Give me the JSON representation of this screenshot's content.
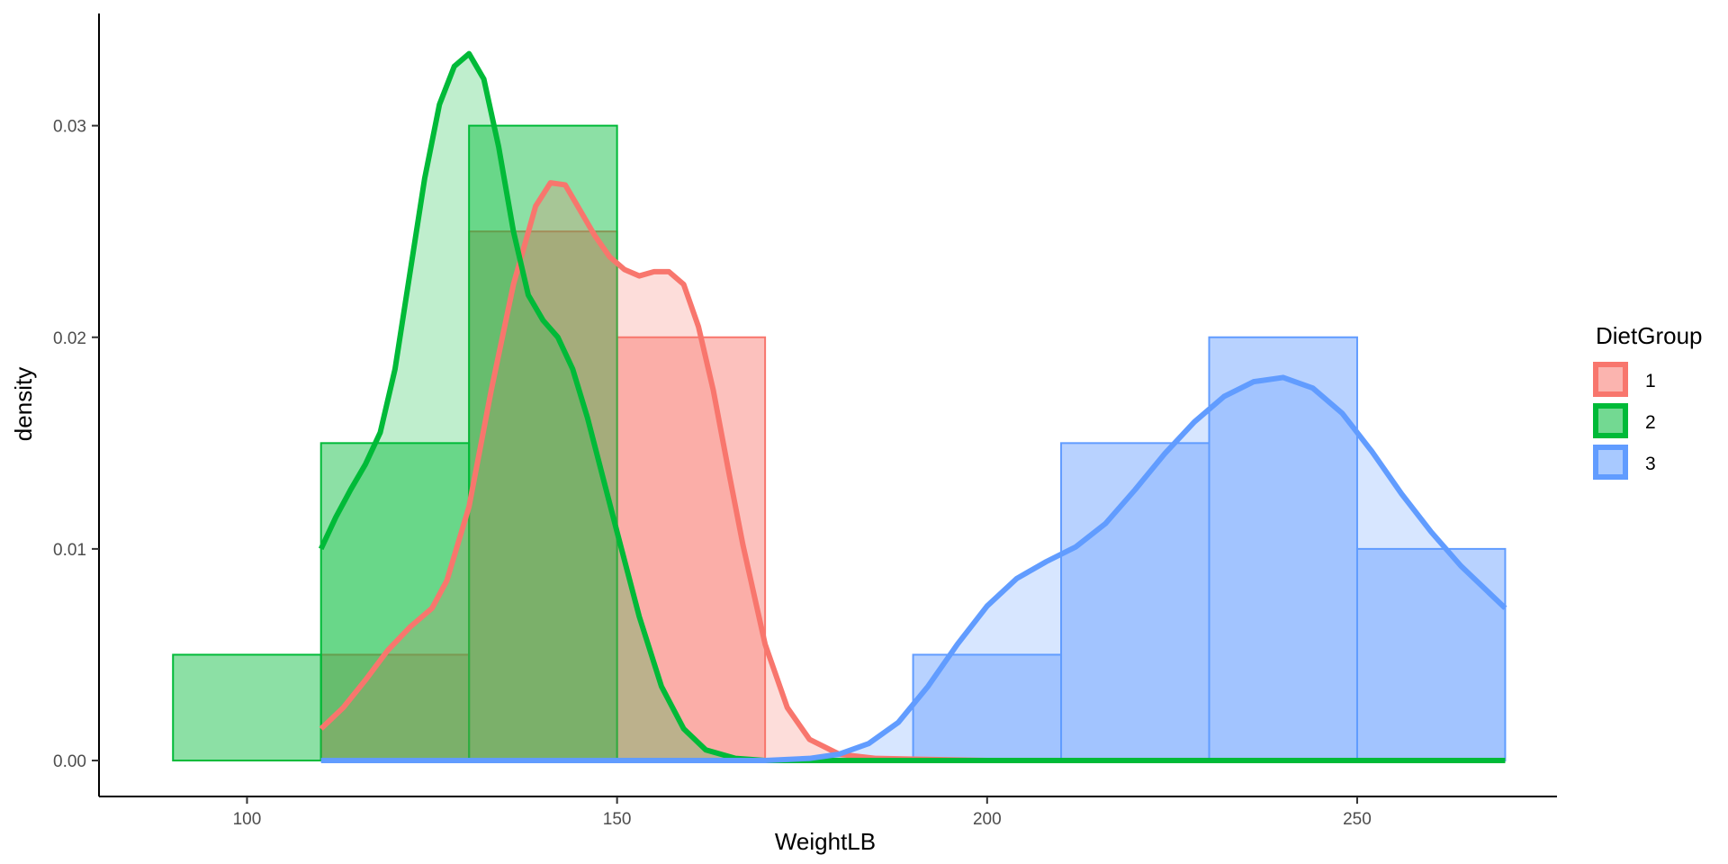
{
  "chart_data": {
    "type": "histogram+density",
    "title": "",
    "xlabel": "WeightLB",
    "ylabel": "density",
    "xlim": [
      80,
      277
    ],
    "ylim": [
      -0.0017,
      0.0353
    ],
    "xticks": [
      100,
      150,
      200,
      250
    ],
    "yticks": [
      0.0,
      0.01,
      0.02,
      0.03
    ],
    "xtick_labels": [
      "100",
      "150",
      "200",
      "250"
    ],
    "ytick_labels": [
      "0.00",
      "0.01",
      "0.02",
      "0.03"
    ],
    "grid": false,
    "legend": {
      "title": "DietGroup",
      "position": "right",
      "entries": [
        "1",
        "2",
        "3"
      ]
    },
    "series": [
      {
        "name": "1",
        "color": "#F8766D",
        "bins": [
          {
            "x0": 110,
            "x1": 130,
            "density": 0.005
          },
          {
            "x0": 130,
            "x1": 150,
            "density": 0.025
          },
          {
            "x0": 150,
            "x1": 170,
            "density": 0.02
          }
        ],
        "density_curve": [
          [
            110,
            0.0015
          ],
          [
            113,
            0.0025
          ],
          [
            116,
            0.0038
          ],
          [
            119,
            0.0052
          ],
          [
            122,
            0.0063
          ],
          [
            125,
            0.0072
          ],
          [
            127,
            0.0085
          ],
          [
            130,
            0.012
          ],
          [
            133,
            0.0175
          ],
          [
            136,
            0.0225
          ],
          [
            139,
            0.0262
          ],
          [
            141,
            0.0273
          ],
          [
            143,
            0.0272
          ],
          [
            145,
            0.026
          ],
          [
            147,
            0.0248
          ],
          [
            149,
            0.0238
          ],
          [
            151,
            0.0232
          ],
          [
            153,
            0.0229
          ],
          [
            155,
            0.0231
          ],
          [
            157,
            0.0231
          ],
          [
            159,
            0.0225
          ],
          [
            161,
            0.0205
          ],
          [
            163,
            0.0175
          ],
          [
            165,
            0.0138
          ],
          [
            167,
            0.0102
          ],
          [
            170,
            0.0055
          ],
          [
            173,
            0.0025
          ],
          [
            176,
            0.001
          ],
          [
            180,
            0.0003
          ],
          [
            185,
            0.0001
          ],
          [
            200,
            0.0
          ],
          [
            230,
            0.0
          ],
          [
            270,
            0.0
          ]
        ]
      },
      {
        "name": "2",
        "color": "#00BA38",
        "bins": [
          {
            "x0": 90,
            "x1": 110,
            "density": 0.005
          },
          {
            "x0": 110,
            "x1": 130,
            "density": 0.015
          },
          {
            "x0": 130,
            "x1": 150,
            "density": 0.03
          }
        ],
        "density_curve": [
          [
            110,
            0.01
          ],
          [
            112,
            0.0115
          ],
          [
            114,
            0.0128
          ],
          [
            116,
            0.014
          ],
          [
            118,
            0.0155
          ],
          [
            120,
            0.0185
          ],
          [
            122,
            0.023
          ],
          [
            124,
            0.0275
          ],
          [
            126,
            0.031
          ],
          [
            128,
            0.0328
          ],
          [
            130,
            0.0334
          ],
          [
            132,
            0.0322
          ],
          [
            134,
            0.029
          ],
          [
            136,
            0.025
          ],
          [
            138,
            0.022
          ],
          [
            140,
            0.0208
          ],
          [
            142,
            0.02
          ],
          [
            144,
            0.0185
          ],
          [
            146,
            0.0162
          ],
          [
            148,
            0.0135
          ],
          [
            150,
            0.0108
          ],
          [
            153,
            0.0068
          ],
          [
            156,
            0.0035
          ],
          [
            159,
            0.0015
          ],
          [
            162,
            0.0005
          ],
          [
            166,
            0.0001
          ],
          [
            170,
            0.0
          ],
          [
            200,
            0.0
          ],
          [
            240,
            0.0
          ],
          [
            270,
            0.0
          ]
        ]
      },
      {
        "name": "3",
        "color": "#619CFF",
        "bins": [
          {
            "x0": 190,
            "x1": 210,
            "density": 0.005
          },
          {
            "x0": 210,
            "x1": 230,
            "density": 0.015
          },
          {
            "x0": 230,
            "x1": 250,
            "density": 0.02
          },
          {
            "x0": 250,
            "x1": 270,
            "density": 0.01
          }
        ],
        "density_curve": [
          [
            110,
            0.0
          ],
          [
            150,
            0.0
          ],
          [
            170,
            0.0
          ],
          [
            176,
            0.0001
          ],
          [
            180,
            0.0003
          ],
          [
            184,
            0.0008
          ],
          [
            188,
            0.0018
          ],
          [
            192,
            0.0035
          ],
          [
            196,
            0.0055
          ],
          [
            200,
            0.0073
          ],
          [
            204,
            0.0086
          ],
          [
            208,
            0.0094
          ],
          [
            212,
            0.0101
          ],
          [
            216,
            0.0112
          ],
          [
            220,
            0.0128
          ],
          [
            224,
            0.0145
          ],
          [
            228,
            0.016
          ],
          [
            232,
            0.0172
          ],
          [
            236,
            0.0179
          ],
          [
            240,
            0.0181
          ],
          [
            244,
            0.0176
          ],
          [
            248,
            0.0164
          ],
          [
            252,
            0.0146
          ],
          [
            256,
            0.0126
          ],
          [
            260,
            0.0108
          ],
          [
            264,
            0.0092
          ],
          [
            267,
            0.0082
          ],
          [
            270,
            0.0072
          ]
        ]
      }
    ]
  }
}
